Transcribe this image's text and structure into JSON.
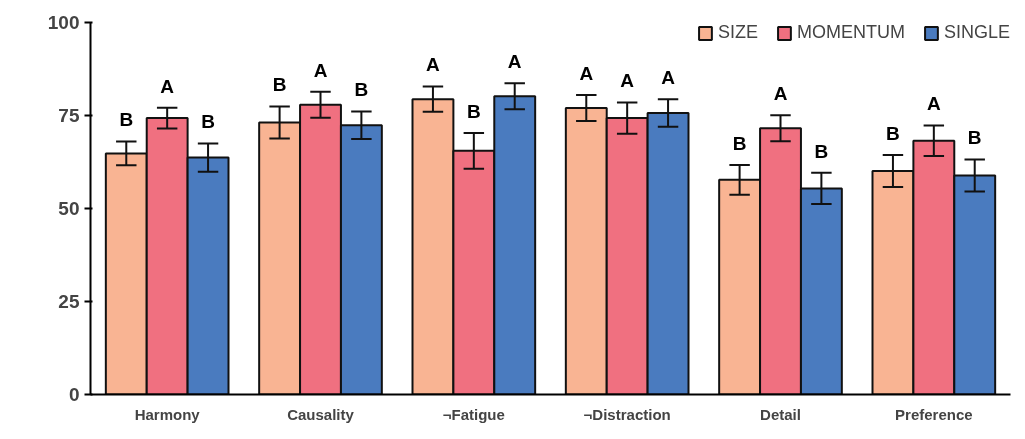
{
  "chart_data": {
    "type": "bar",
    "categories": [
      "Harmony",
      "Causality",
      "¬Fatigue",
      "¬Distraction",
      "Detail",
      "Preference"
    ],
    "series": [
      {
        "name": "SIZE",
        "color": "#f9b493",
        "values": [
          64.8,
          73.1,
          79.4,
          77.0,
          57.7,
          60.1
        ],
        "errors": [
          3.2,
          4.3,
          3.4,
          3.5,
          4.0,
          4.3
        ],
        "value_labels": [
          "B",
          "B",
          "A",
          "A",
          "B",
          "B"
        ]
      },
      {
        "name": "MOMENTUM",
        "color": "#f07080",
        "values": [
          74.3,
          77.9,
          65.5,
          74.3,
          71.6,
          68.2
        ],
        "errors": [
          2.8,
          3.5,
          4.8,
          4.2,
          3.5,
          4.1
        ],
        "value_labels": [
          "A",
          "A",
          "B",
          "A",
          "A",
          "A"
        ]
      },
      {
        "name": "SINGLE",
        "color": "#4a7bbf",
        "values": [
          63.7,
          72.4,
          80.2,
          75.7,
          55.4,
          58.9
        ],
        "errors": [
          3.8,
          3.7,
          3.5,
          3.7,
          4.2,
          4.3
        ],
        "value_labels": [
          "B",
          "B",
          "A",
          "A",
          "B",
          "B"
        ]
      }
    ],
    "ylim": [
      0,
      100
    ],
    "yticks": [
      0,
      25,
      50,
      75,
      100
    ],
    "grid": false,
    "legend": "top right"
  }
}
